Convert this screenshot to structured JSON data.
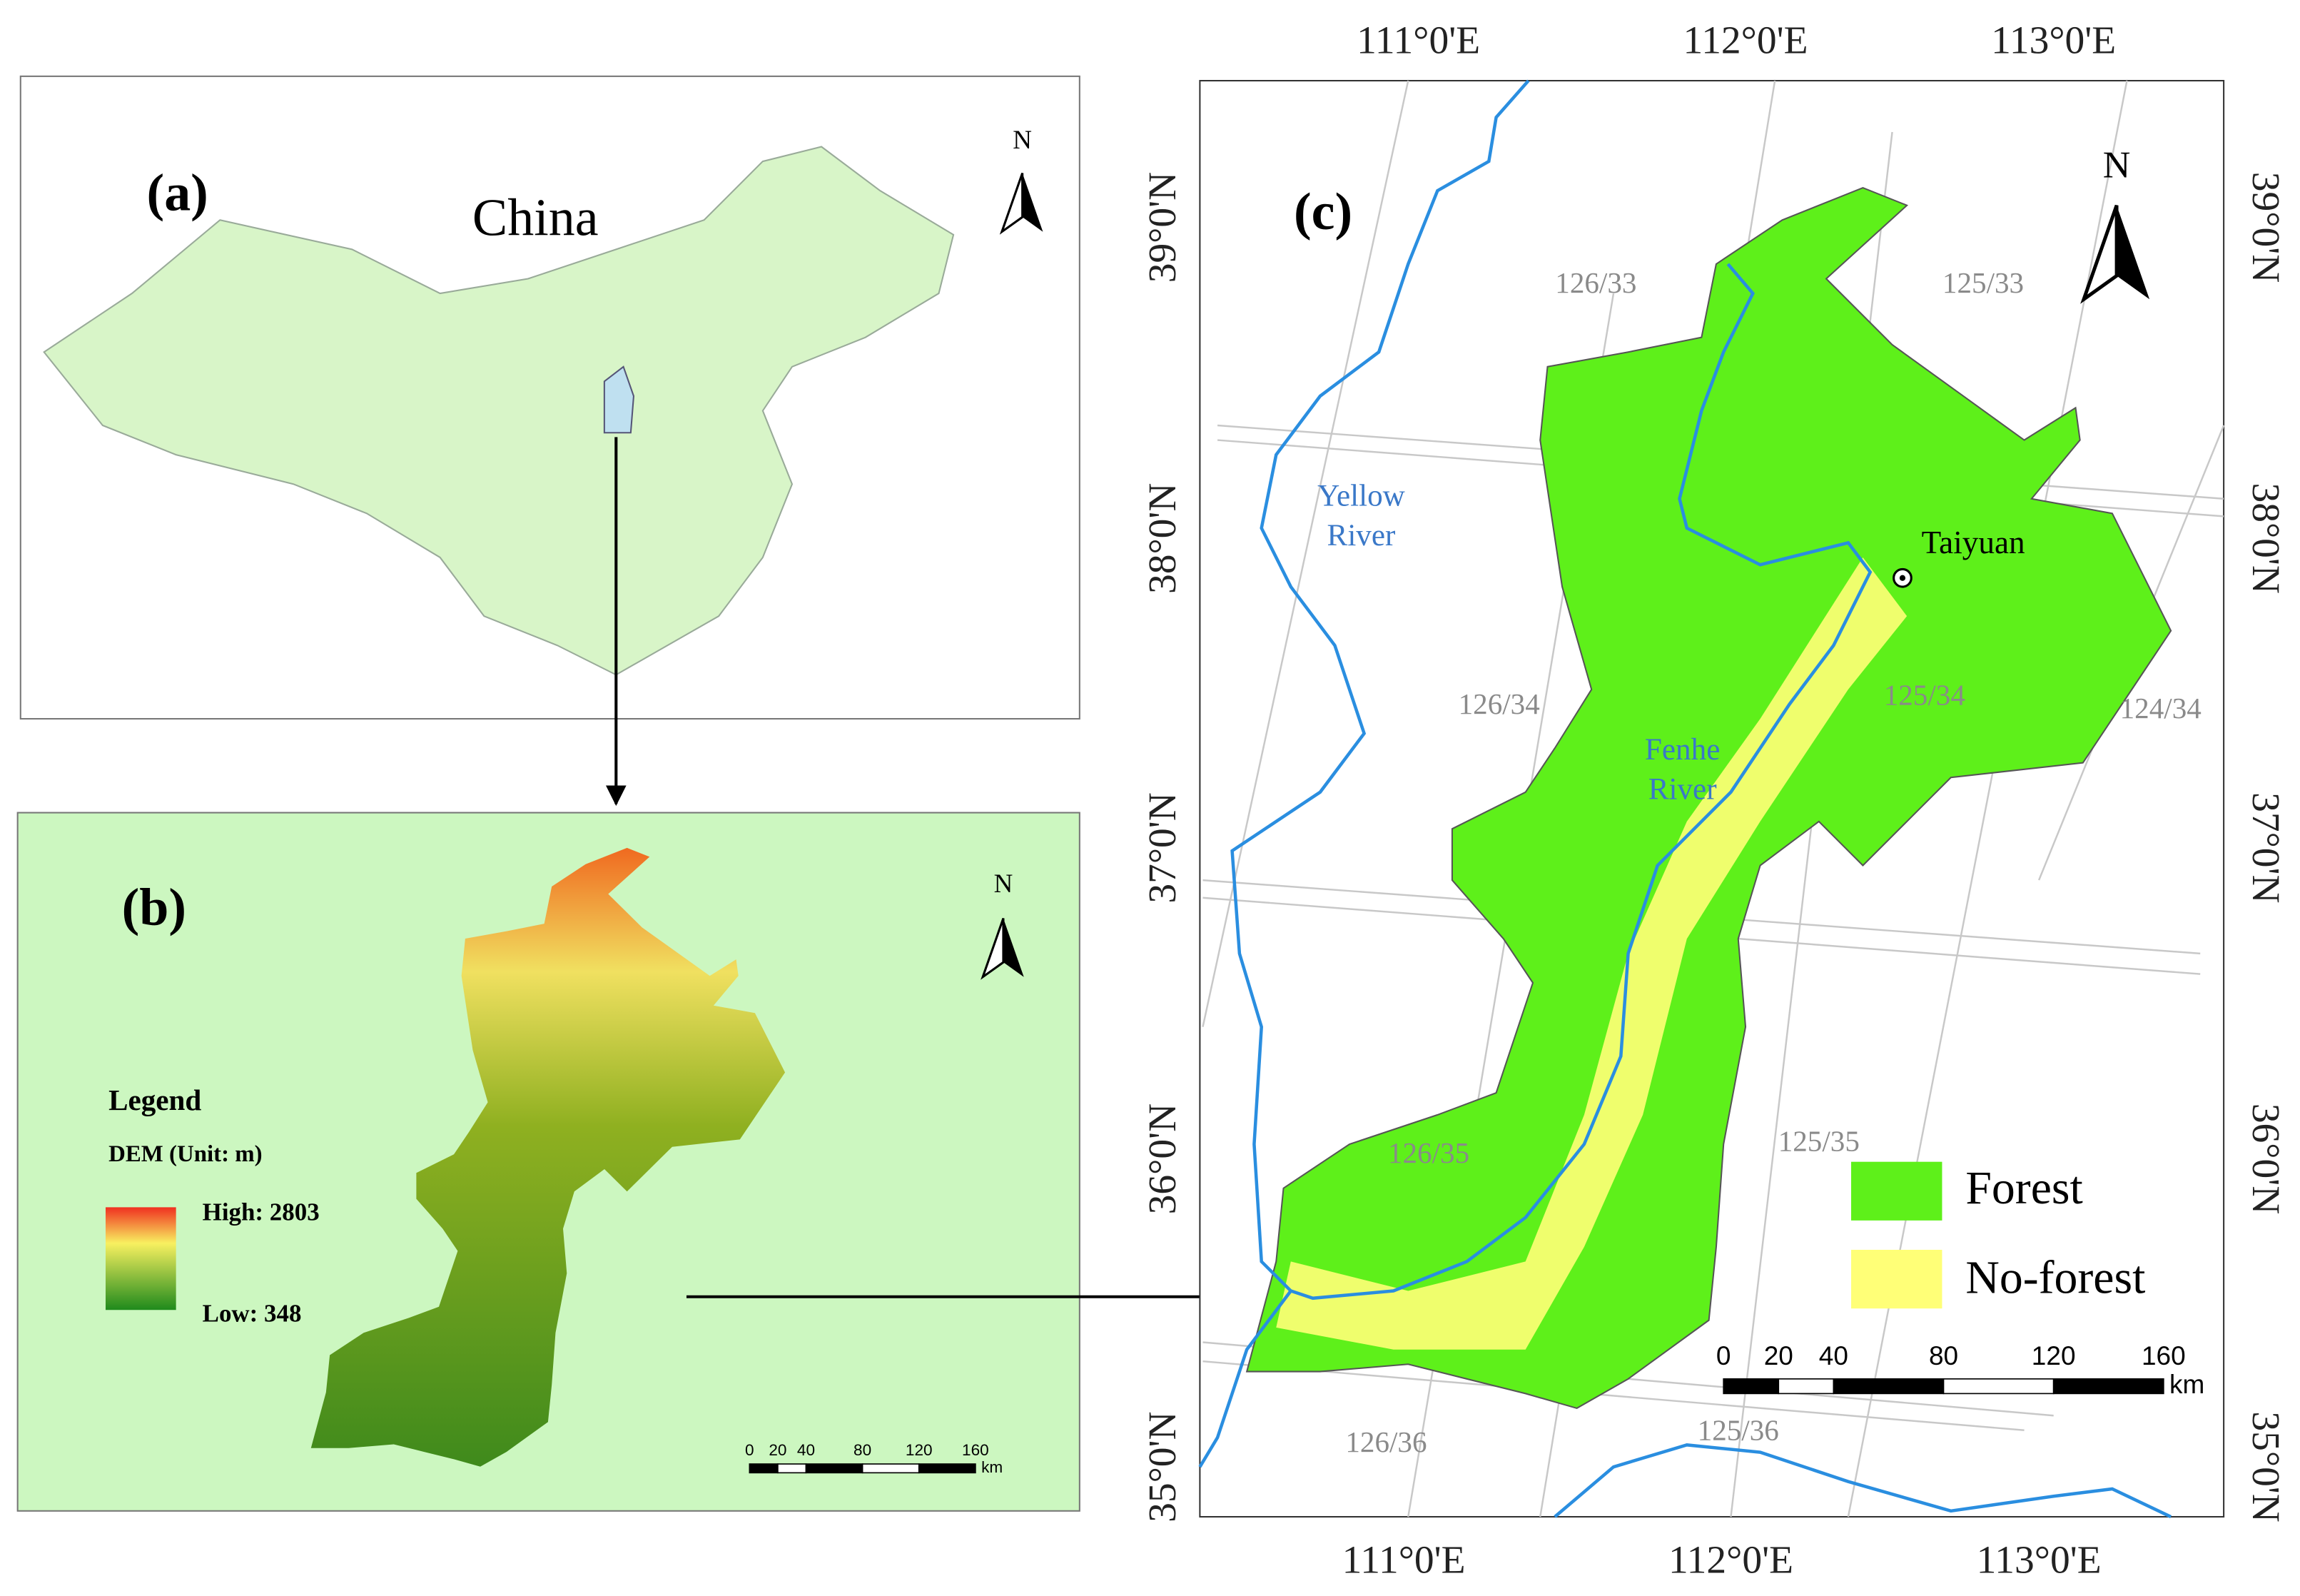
{
  "panel_a": {
    "label": "(a)",
    "country": "China",
    "north": "N"
  },
  "panel_b": {
    "label": "(b)",
    "north": "N",
    "legend": {
      "title": "Legend",
      "subtitle": "DEM (Unit: m)",
      "high": "High: 2803",
      "low": "Low: 348"
    },
    "scale": {
      "ticks": [
        "0",
        "20",
        "40",
        "80",
        "120",
        "160"
      ],
      "unit": "km"
    }
  },
  "panel_c": {
    "label": "(c)",
    "north": "N",
    "longitudes": [
      "111°0'E",
      "112°0'E",
      "113°0'E"
    ],
    "latitudes": [
      "39°0'N",
      "38°0'N",
      "37°0'N",
      "36°0'N",
      "35°0'N"
    ],
    "scenes": [
      "126/33",
      "125/33",
      "126/34",
      "125/34",
      "124/34",
      "126/35",
      "125/35",
      "126/36",
      "125/36"
    ],
    "rivers": [
      [
        "Yellow",
        "River"
      ],
      [
        "Fenhe",
        "River"
      ]
    ],
    "city": "Taiyuan",
    "legend": [
      {
        "label": "Forest",
        "color": "#5ef01a"
      },
      {
        "label": "No-forest",
        "color": "#ffff77"
      }
    ],
    "scale": {
      "ticks": [
        "0",
        "20",
        "40",
        "80",
        "120",
        "160"
      ],
      "unit": "km"
    }
  }
}
